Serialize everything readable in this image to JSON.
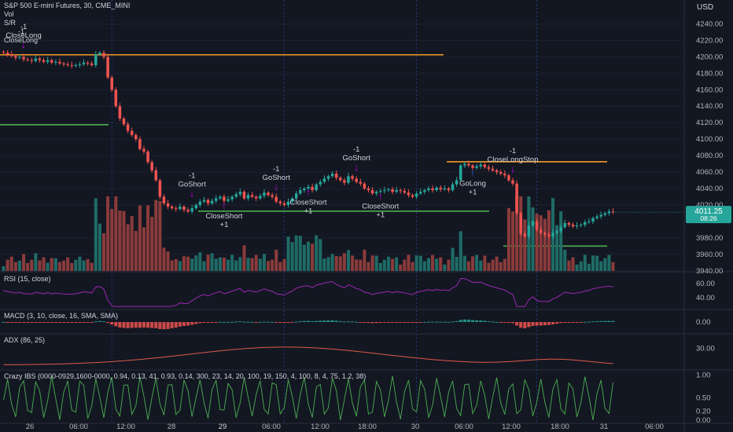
{
  "header": {
    "title": "S&P 500 E-mini Futures, 30, CME_MINI",
    "line2": "Vol",
    "line3": "S/R",
    "line4": "-1",
    "line5": "CloseLong",
    "currency": "USD"
  },
  "colors": {
    "up": "#26a69a",
    "down": "#ef5350",
    "vol_up": "#1f6b66",
    "vol_down": "#8a3b3b",
    "resistance": "#f59c27",
    "support": "#4caf50",
    "rsi": "#9c27b0",
    "adx": "#e0584b",
    "ibs": "#4caf50",
    "signal": "#d500f9",
    "background": "#131722"
  },
  "price_axis": {
    "ticks": [
      "4240.00",
      "4220.00",
      "4200.00",
      "4180.00",
      "4160.00",
      "4140.00",
      "4120.00",
      "4100.00",
      "4080.00",
      "4060.00",
      "4040.00",
      "4020.00",
      "3980.00",
      "3960.00",
      "3940.00"
    ],
    "last_price": "4011.25",
    "countdown": "08:26"
  },
  "time_axis": {
    "labels": [
      "26",
      "06:00",
      "12:00",
      "28",
      "29",
      "06:00",
      "12:00",
      "18:00",
      "30",
      "06:00",
      "12:00",
      "18:00",
      "31",
      "06:00"
    ]
  },
  "chart_data": {
    "type": "candlestick",
    "close_series": [
      4205,
      4203,
      4201,
      4199,
      4200,
      4197,
      4196,
      4195,
      4198,
      4196,
      4194,
      4196,
      4193,
      4194,
      4192,
      4191,
      4190,
      4189,
      4190,
      4191,
      4193,
      4192,
      4190,
      4203,
      4205,
      4200,
      4175,
      4160,
      4140,
      4125,
      4118,
      4110,
      4105,
      4100,
      4088,
      4085,
      4072,
      4062,
      4050,
      4030,
      4022,
      4018,
      4016,
      4015,
      4018,
      4014,
      4012,
      4016,
      4020,
      4024,
      4026,
      4022,
      4025,
      4028,
      4030,
      4025,
      4027,
      4030,
      4033,
      4036,
      4028,
      4032,
      4030,
      4028,
      4031,
      4035,
      4032,
      4030,
      4024,
      4022,
      4020,
      4024,
      4028,
      4034,
      4038,
      4040,
      4042,
      4038,
      4045,
      4048,
      4052,
      4055,
      4058,
      4053,
      4050,
      4047,
      4055,
      4052,
      4048,
      4046,
      4040,
      4038,
      4034,
      4036,
      4037,
      4038,
      4039,
      4036,
      4038,
      4037,
      4035,
      4032,
      4030,
      4034,
      4036,
      4038,
      4040,
      4038,
      4041,
      4039,
      4040,
      4038,
      4045,
      4050,
      4068,
      4070,
      4068,
      4065,
      4067,
      4069,
      4066,
      4064,
      4062,
      4060,
      4058,
      4056,
      4050,
      4046,
      4010,
      3985,
      3982,
      3995,
      4000,
      3990,
      3986,
      3984,
      3982,
      3986,
      3988,
      3993,
      3998,
      3996,
      3994,
      3995,
      3996,
      3999,
      4000,
      4004,
      4006,
      4008,
      4010,
      4012,
      4011
    ],
    "resistance_levels": [
      {
        "value": 4202.5,
        "segment": "26 → 30"
      },
      {
        "value": 4072.5,
        "segment": "30 → 31"
      }
    ],
    "support_levels": [
      {
        "value": 4117.5,
        "segment": "26"
      },
      {
        "value": 4012.5,
        "segment": "28 → 30"
      },
      {
        "value": 3970,
        "segment": "30 → 31"
      }
    ],
    "signals": [
      {
        "text": "CloseLong",
        "qty": "-1",
        "dir": "sell"
      },
      {
        "text": "GoShort",
        "qty": "-1",
        "dir": "sell"
      },
      {
        "text": "CloseShort",
        "qty": "+1",
        "dir": "buy"
      },
      {
        "text": "GoShort",
        "qty": "-1",
        "dir": "sell"
      },
      {
        "text": "CloseShort",
        "qty": "+1",
        "dir": "buy"
      },
      {
        "text": "GoShort",
        "qty": "-1",
        "dir": "sell"
      },
      {
        "text": "CloseShort",
        "qty": "+1",
        "dir": "buy"
      },
      {
        "text": "GoLong",
        "qty": "+1",
        "dir": "buy"
      },
      {
        "text": "CloseLongStop",
        "qty": "-1",
        "dir": "sell"
      }
    ],
    "price_range": [
      3935,
      4250
    ],
    "rsi": {
      "label": "RSI (15, close)",
      "ticks": [
        "60.00",
        "40.00"
      ],
      "range": [
        25,
        75
      ]
    },
    "macd": {
      "label": "MACD (3, 10, close, 16, SMA, SMA)",
      "ticks": [
        "0.00"
      ]
    },
    "adx": {
      "label": "ADX (86, 25)",
      "ticks": [
        "30.00"
      ],
      "range": [
        15,
        40
      ]
    },
    "ibs": {
      "label": "Crazy IBS (0000-0929,1600-0000, 0.94, 0.13, 41, 0.93, 0.14, 300, 23, 14, 20, 100, 19, 150, 4, 100, 8, 4, 75, 1.2, 38)",
      "ticks": [
        "1.00",
        "0.50",
        "0.20",
        "0.00"
      ],
      "range": [
        -0.05,
        1.1
      ]
    }
  }
}
